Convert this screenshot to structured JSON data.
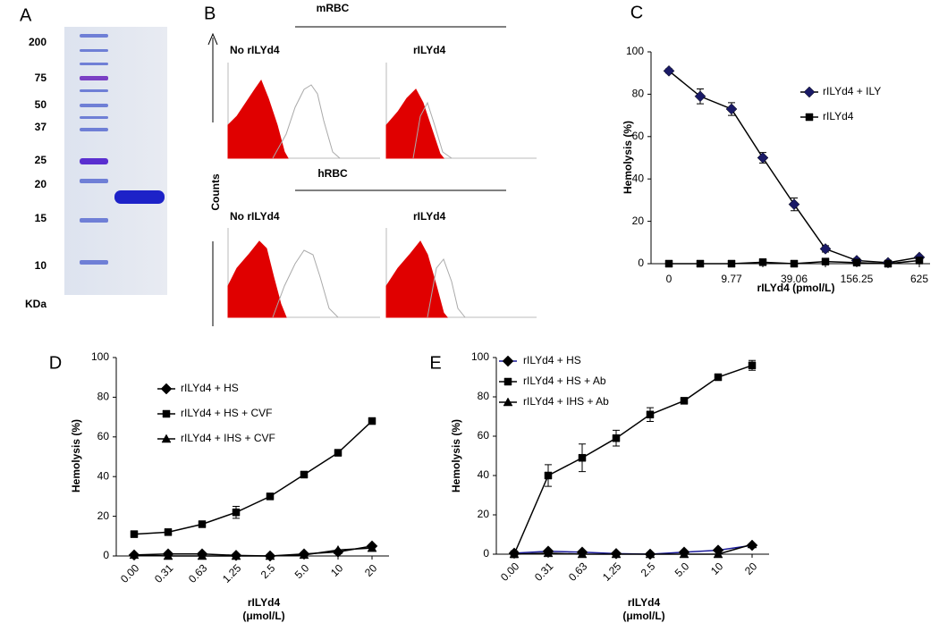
{
  "gel": {
    "label": "A",
    "markers": [
      "200",
      "75",
      "50",
      "37",
      "25",
      "20",
      "15",
      "10"
    ],
    "unit": "KDa"
  },
  "flow": {
    "label": "B",
    "axis_label": "Counts",
    "rows": [
      {
        "title": "mRBC",
        "left": "No rILYd4",
        "right": "rILYd4"
      },
      {
        "title": "hRBC",
        "left": "No rILYd4",
        "right": "rILYd4"
      }
    ]
  },
  "chart_data": [
    {
      "type": "line",
      "label": "C",
      "ylabel": "Hemolysis (%)",
      "xlabel": [
        "rILYd4 (pmol/L)"
      ],
      "categories": [
        "0",
        null,
        "9.77",
        null,
        "39.06",
        null,
        "156.25",
        null,
        "625"
      ],
      "ylim": [
        0,
        100
      ],
      "yticks": [
        0,
        20,
        40,
        60,
        80,
        100
      ],
      "legend": "upper right",
      "xtick_rotation": 0,
      "series": [
        {
          "name": "rILYd4 + ILY",
          "color": "#000000",
          "marker_fill": "#1a1a66",
          "marker": "diamond",
          "values": [
            91,
            79,
            73,
            50,
            28,
            7,
            1.5,
            0.5,
            3
          ],
          "errors": [
            1,
            3.5,
            3,
            2.5,
            3,
            1.5,
            1,
            0.5,
            0.5
          ]
        },
        {
          "name": "rILYd4",
          "color": "#000000",
          "marker_fill": "#000000",
          "marker": "square",
          "values": [
            0,
            0,
            0,
            0.7,
            0,
            1,
            0.5,
            0,
            1.5
          ]
        }
      ]
    },
    {
      "type": "line",
      "label": "D",
      "ylabel": "Hemolysis (%)",
      "xlabel": [
        "rILYd4",
        "(μmol/L)"
      ],
      "categories": [
        "0.00",
        "0.31",
        "0.63",
        "1.25",
        "2.5",
        "5.0",
        "10",
        "20"
      ],
      "ylim": [
        0,
        100
      ],
      "yticks": [
        0,
        20,
        40,
        60,
        80,
        100
      ],
      "legend": "upper left",
      "xtick_rotation": 45,
      "series": [
        {
          "name": "rILYd4 + HS",
          "color": "#000000",
          "marker_fill": "#000000",
          "marker": "diamond",
          "values": [
            0.5,
            1,
            1,
            0.3,
            0,
            1,
            2,
            5
          ]
        },
        {
          "name": "rILYd4 + HS + CVF",
          "color": "#000000",
          "marker_fill": "#000000",
          "marker": "square",
          "values": [
            11,
            12,
            16,
            22,
            30,
            41,
            52,
            68
          ],
          "errors": [
            0.5,
            0.5,
            1,
            3,
            0.5,
            1,
            1.5,
            1.5
          ]
        },
        {
          "name": "rILYd4 + IHS + CVF",
          "color": "#000000",
          "marker_fill": "#000000",
          "marker": "triangle",
          "values": [
            0.5,
            0,
            0,
            0,
            0,
            0.5,
            3,
            4
          ]
        }
      ]
    },
    {
      "type": "line",
      "label": "E",
      "ylabel": "Hemolysis (%)",
      "xlabel": [
        "rILYd4",
        "(μmol/L)"
      ],
      "categories": [
        "0.00",
        "0.31",
        "0.63",
        "1.25",
        "2.5",
        "5.0",
        "10",
        "20"
      ],
      "ylim": [
        0,
        100
      ],
      "yticks": [
        0,
        20,
        40,
        60,
        80,
        100
      ],
      "legend": "upper left",
      "xtick_rotation": 45,
      "series": [
        {
          "name": "rILYd4 + HS",
          "color": "#1a1a99",
          "marker_fill": "#000000",
          "marker": "diamond",
          "values": [
            0.5,
            1.5,
            1,
            0.3,
            0,
            1,
            2,
            4.5
          ]
        },
        {
          "name": "rILYd4 + HS + Ab",
          "color": "#000000",
          "marker_fill": "#000000",
          "marker": "square",
          "values": [
            0,
            40,
            49,
            59,
            71,
            78,
            90,
            96
          ],
          "errors": [
            0.5,
            5.5,
            7,
            4,
            3.5,
            0.5,
            0.5,
            2.5
          ]
        },
        {
          "name": "rILYd4 + IHS + Ab",
          "color": "#000000",
          "marker_fill": "#000000",
          "marker": "triangle",
          "values": [
            0,
            0.5,
            0,
            0,
            0,
            0,
            0,
            5
          ]
        }
      ]
    }
  ]
}
